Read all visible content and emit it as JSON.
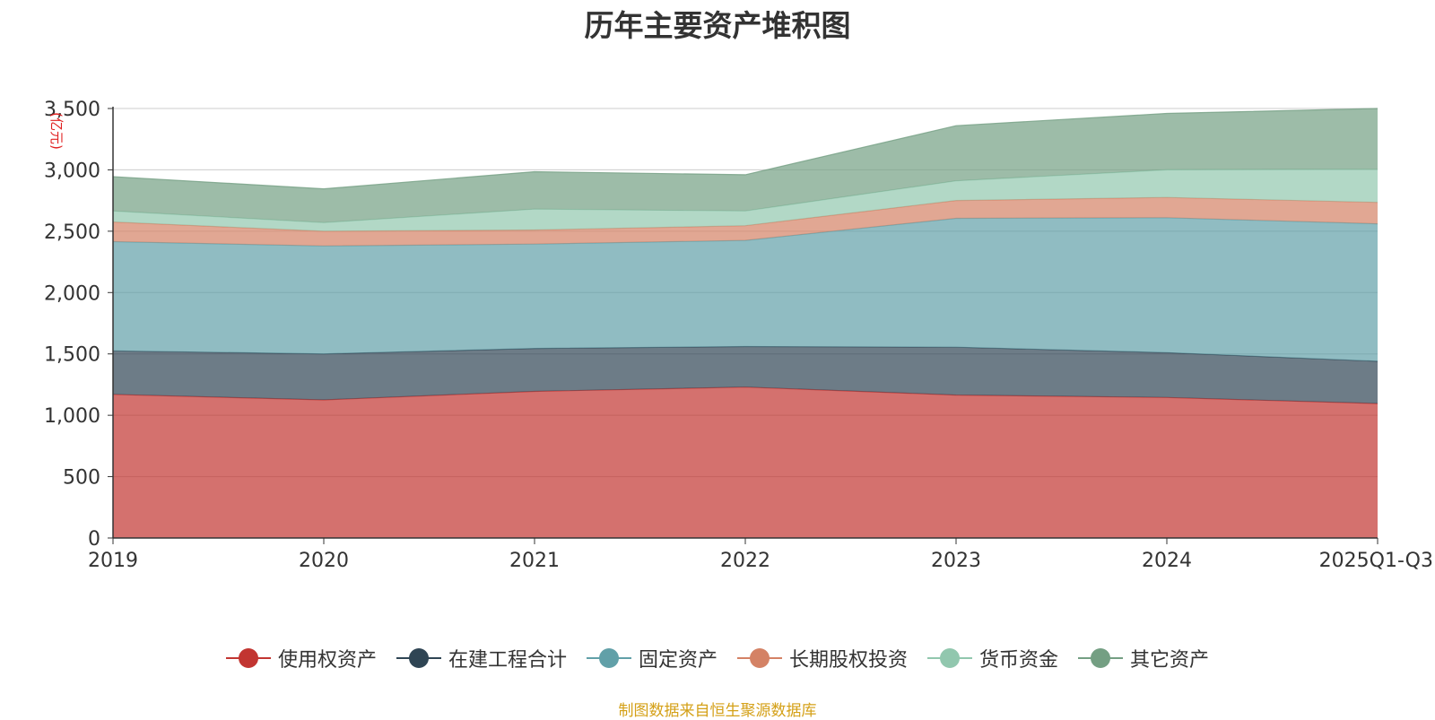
{
  "chart_data": {
    "type": "area",
    "stacked": true,
    "title": "历年主要资产堆积图",
    "ylabel": "(亿元)",
    "xlabel": "",
    "categories": [
      "2019",
      "2020",
      "2021",
      "2022",
      "2023",
      "2024",
      "2025Q1-Q3"
    ],
    "ylim": [
      0,
      3500
    ],
    "yticks": [
      0,
      500,
      1000,
      1500,
      2000,
      2500,
      3000,
      3500
    ],
    "ytick_labels": [
      "0",
      "500",
      "1,000",
      "1,500",
      "2,000",
      "2,500",
      "3,000",
      "3,500"
    ],
    "grid": true,
    "legend_position": "bottom",
    "series": [
      {
        "name": "使用权资产",
        "color": "#c23531",
        "values": [
          1170,
          1125,
          1195,
          1230,
          1165,
          1145,
          1095
        ]
      },
      {
        "name": "在建工程合计",
        "color": "#2f4554",
        "values": [
          355,
          375,
          350,
          330,
          390,
          365,
          345
        ]
      },
      {
        "name": "固定资产",
        "color": "#61a0a8",
        "values": [
          890,
          880,
          850,
          865,
          1050,
          1100,
          1120
        ]
      },
      {
        "name": "长期股权投资",
        "color": "#d48265",
        "values": [
          160,
          120,
          115,
          120,
          145,
          165,
          175
        ]
      },
      {
        "name": "货币资金",
        "color": "#91c7ae",
        "values": [
          90,
          70,
          170,
          120,
          160,
          225,
          270
        ]
      },
      {
        "name": "其它资产",
        "color": "#749f83",
        "values": [
          280,
          275,
          305,
          295,
          450,
          460,
          495
        ]
      }
    ]
  },
  "source_text": "制图数据来自恒生聚源数据库"
}
